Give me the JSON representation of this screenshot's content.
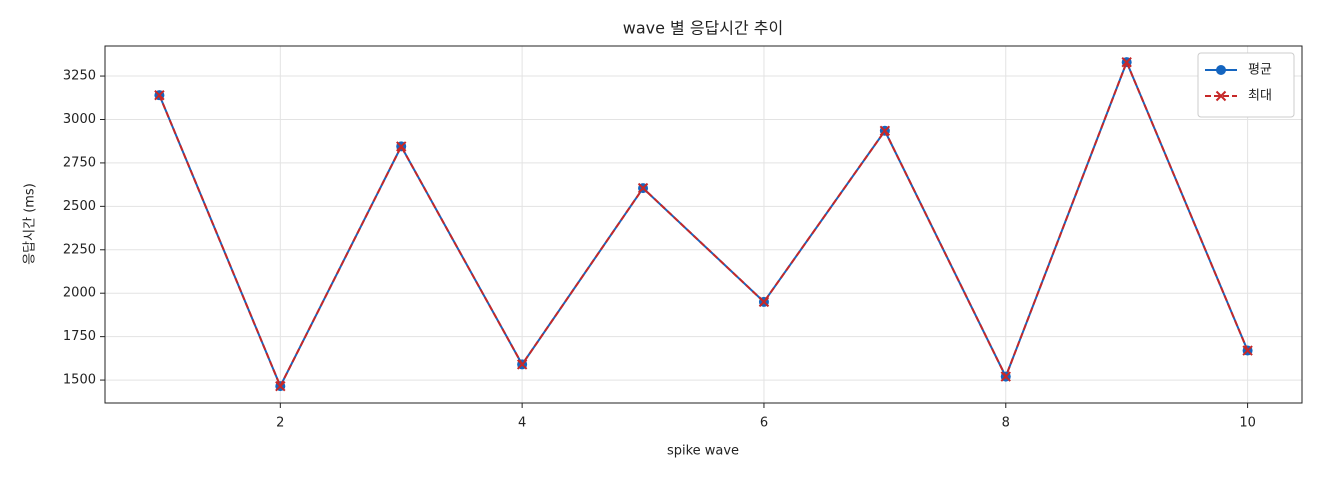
{
  "chart_data": {
    "type": "line",
    "title": "wave 별 응답시간 추이",
    "x_label": "spike wave",
    "y_label": "응답시간 (ms)",
    "x": [
      1,
      2,
      3,
      4,
      5,
      6,
      7,
      8,
      9,
      10
    ],
    "series": [
      {
        "name": "평균",
        "color": "#1565c0",
        "marker": "circle",
        "dash": "solid",
        "values": [
          3140,
          1465,
          2845,
          1590,
          2605,
          1950,
          2935,
          1520,
          3330,
          1670
        ]
      },
      {
        "name": "최대",
        "color": "#c62828",
        "marker": "x",
        "dash": "dashed",
        "values": [
          3140,
          1465,
          2845,
          1590,
          2605,
          1950,
          2935,
          1520,
          3330,
          1670
        ]
      }
    ],
    "xlim": [
      0.55,
      10.45
    ],
    "xticks": [
      2,
      4,
      6,
      8,
      10
    ],
    "ylim": [
      1368,
      3423
    ],
    "yticks": [
      1500,
      1750,
      2000,
      2250,
      2500,
      2750,
      3000,
      3250
    ],
    "grid": true,
    "legend": "upper right"
  }
}
